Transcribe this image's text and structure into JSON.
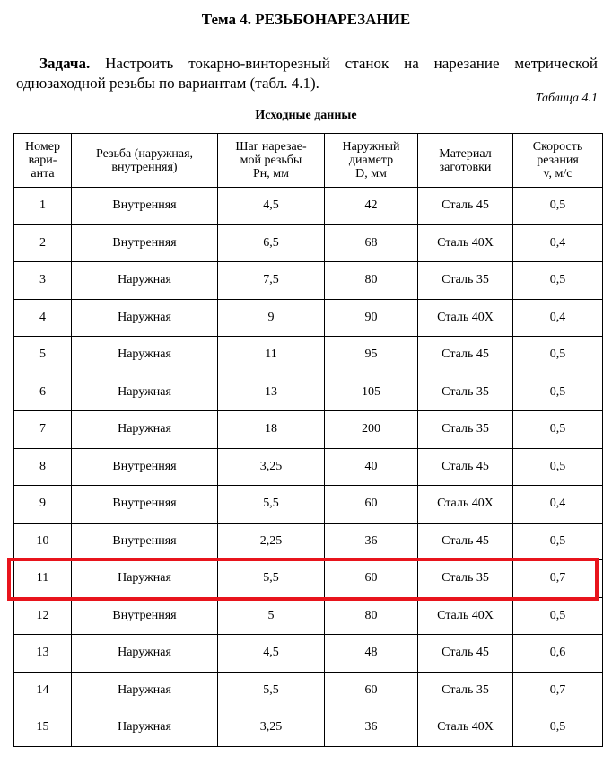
{
  "title": "Тема 4. РЕЗЬБОНАРЕЗАНИЕ",
  "task": {
    "label": "Задача.",
    "text": " Настроить токарно-винторезный станок на нарезание метрической однозаходной резьбы по вариантам (табл. 4.1)."
  },
  "table_label": "Таблица 4.1",
  "table_caption": "Исходные данные",
  "columns": [
    [
      "Номер",
      "вари-",
      "анта"
    ],
    [
      "Резьба (наружная,",
      "внутренняя)"
    ],
    [
      "Шаг нарезае-",
      "мой резьбы",
      "Pн, мм"
    ],
    [
      "Наружный",
      "диаметр",
      "D, мм"
    ],
    [
      "Материал",
      "заготовки"
    ],
    [
      "Скорость",
      "резания",
      "v, м/с"
    ]
  ],
  "rows": [
    [
      "1",
      "Внутренняя",
      "4,5",
      "42",
      "Сталь 45",
      "0,5"
    ],
    [
      "2",
      "Внутренняя",
      "6,5",
      "68",
      "Сталь 40Х",
      "0,4"
    ],
    [
      "3",
      "Наружная",
      "7,5",
      "80",
      "Сталь 35",
      "0,5"
    ],
    [
      "4",
      "Наружная",
      "9",
      "90",
      "Сталь 40Х",
      "0,4"
    ],
    [
      "5",
      "Наружная",
      "11",
      "95",
      "Сталь 45",
      "0,5"
    ],
    [
      "6",
      "Наружная",
      "13",
      "105",
      "Сталь 35",
      "0,5"
    ],
    [
      "7",
      "Наружная",
      "18",
      "200",
      "Сталь 35",
      "0,5"
    ],
    [
      "8",
      "Внутренняя",
      "3,25",
      "40",
      "Сталь 45",
      "0,5"
    ],
    [
      "9",
      "Внутренняя",
      "5,5",
      "60",
      "Сталь 40Х",
      "0,4"
    ],
    [
      "10",
      "Внутренняя",
      "2,25",
      "36",
      "Сталь 45",
      "0,5"
    ],
    [
      "11",
      "Наружная",
      "5,5",
      "60",
      "Сталь 35",
      "0,7"
    ],
    [
      "12",
      "Внутренняя",
      "5",
      "80",
      "Сталь 40Х",
      "0,5"
    ],
    [
      "13",
      "Наружная",
      "4,5",
      "48",
      "Сталь 45",
      "0,6"
    ],
    [
      "14",
      "Наружная",
      "5,5",
      "60",
      "Сталь 35",
      "0,7"
    ],
    [
      "15",
      "Наружная",
      "3,25",
      "36",
      "Сталь 40Х",
      "0,5"
    ]
  ],
  "highlighted_row": "11",
  "highlight_color": "#e8141c"
}
